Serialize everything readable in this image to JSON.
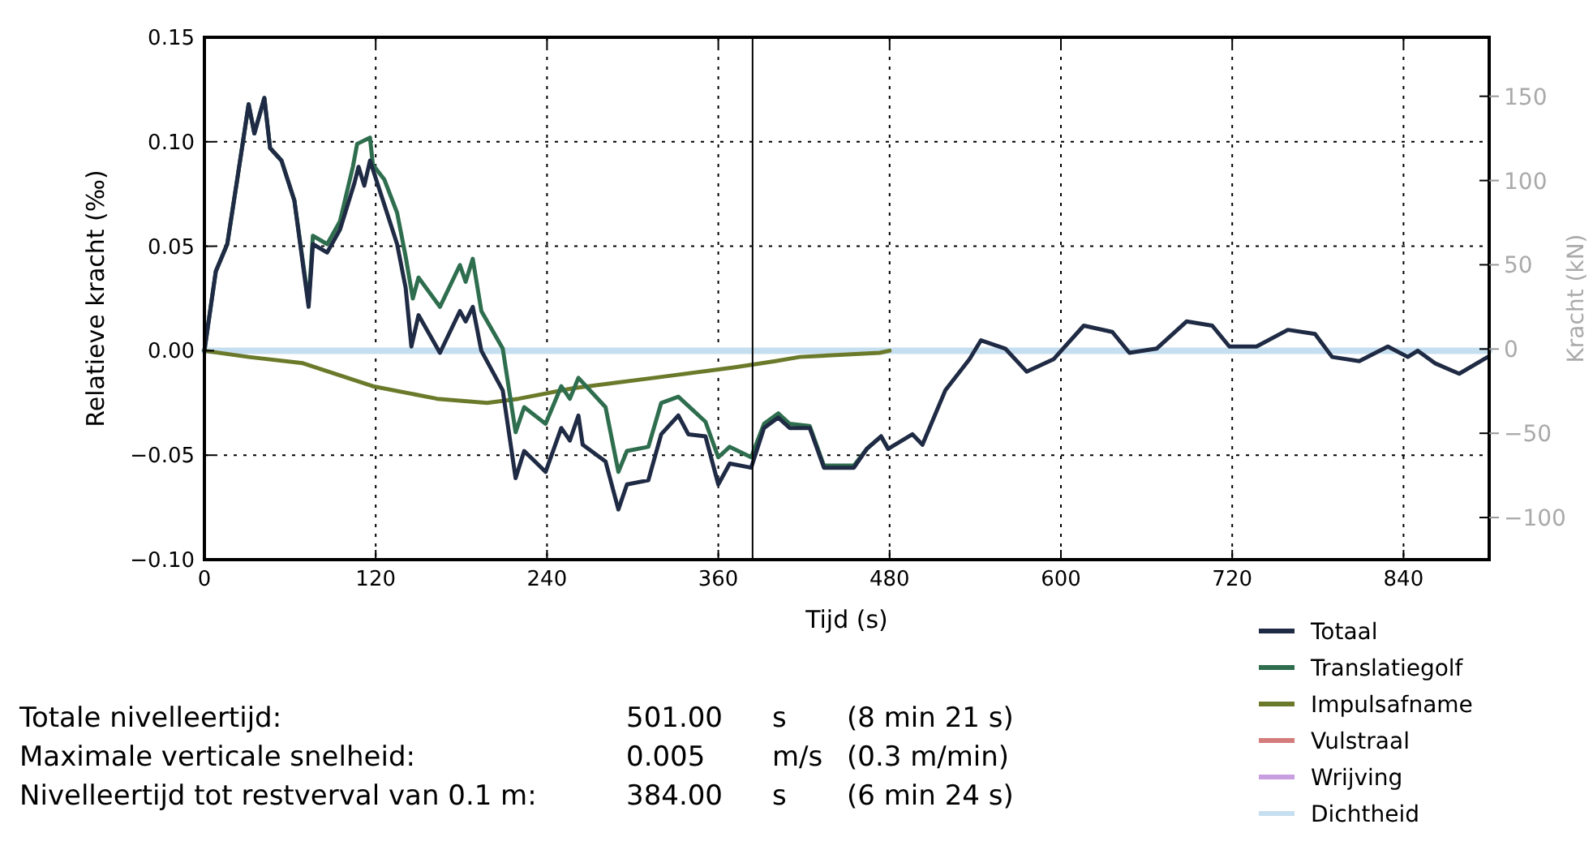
{
  "chart_data": {
    "type": "line",
    "xlabel": "Tijd (s)",
    "ylabel": "Relatieve kracht (‰)",
    "y2label": "Kracht (kN)",
    "xlim": [
      0,
      900
    ],
    "xticks": [
      0,
      120,
      240,
      360,
      480,
      600,
      720,
      840
    ],
    "ylim": [
      -0.1,
      0.15
    ],
    "yticks": [
      {
        "value": -0.1,
        "label": "−0.10"
      },
      {
        "value": -0.05,
        "label": "−0.05"
      },
      {
        "value": 0,
        "label": "0.00"
      },
      {
        "value": 0.05,
        "label": "0.05"
      },
      {
        "value": 0.1,
        "label": "0.10"
      },
      {
        "value": 0.15,
        "label": "0.15"
      }
    ],
    "y2lim": [
      -125,
      185
    ],
    "y2ticks": [
      -100,
      -50,
      0,
      50,
      100,
      150
    ],
    "grid": true,
    "legend": "bottom right",
    "line_style": "solid",
    "ref_lines": [
      {
        "axis": "x",
        "value": 384,
        "color": "#000000"
      }
    ],
    "series": [
      {
        "name": "Dichtheid",
        "color": "#c6dff0",
        "x": [
          0,
          900
        ],
        "values": [
          0,
          0
        ]
      },
      {
        "name": "Wrijving",
        "color": "#c99ee0"
      },
      {
        "name": "Vulstraal",
        "color": "#d47c7c"
      },
      {
        "name": "Impulsafname",
        "color": "#6b7a2a",
        "x": [
          0,
          31,
          69,
          118,
          163,
          198,
          220,
          258,
          315,
          371,
          400,
          417,
          473,
          480
        ],
        "values": [
          0,
          -0.003,
          -0.006,
          -0.017,
          -0.023,
          -0.025,
          -0.023,
          -0.018,
          -0.013,
          -0.008,
          -0.005,
          -0.003,
          -0.001,
          0
        ]
      },
      {
        "name": "Translatiegolf",
        "color": "#2e6e4e",
        "x": [
          0,
          8,
          16,
          23,
          31,
          35,
          42,
          46,
          54,
          63,
          73,
          76,
          86,
          95,
          104,
          107,
          116,
          118,
          126,
          135,
          141,
          146,
          150,
          165,
          179,
          183,
          188,
          194,
          209,
          218,
          224,
          239,
          250,
          256,
          262,
          281,
          290,
          296,
          311,
          320,
          332,
          351,
          360,
          368,
          383,
          392,
          402,
          410,
          424,
          434,
          455,
          464,
          474,
          479
        ],
        "values": [
          0,
          0.038,
          0.051,
          0.082,
          0.118,
          0.104,
          0.121,
          0.097,
          0.091,
          0.072,
          0.023,
          0.055,
          0.051,
          0.062,
          0.088,
          0.099,
          0.102,
          0.089,
          0.082,
          0.066,
          0.045,
          0.025,
          0.035,
          0.021,
          0.041,
          0.033,
          0.044,
          0.019,
          0.001,
          -0.039,
          -0.027,
          -0.035,
          -0.017,
          -0.023,
          -0.013,
          -0.027,
          -0.058,
          -0.048,
          -0.046,
          -0.025,
          -0.022,
          -0.034,
          -0.051,
          -0.046,
          -0.051,
          -0.035,
          -0.03,
          -0.035,
          -0.036,
          -0.055,
          -0.055,
          -0.047,
          -0.041,
          -0.047
        ]
      },
      {
        "name": "Totaal",
        "color": "#1f2a44",
        "x": [
          0,
          8,
          16,
          23,
          31,
          35,
          42,
          46,
          54,
          63,
          73,
          76,
          86,
          95,
          105,
          108,
          112,
          116,
          126,
          135,
          141,
          145,
          150,
          165,
          179,
          183,
          188,
          194,
          209,
          218,
          224,
          239,
          250,
          256,
          262,
          265,
          281,
          290,
          296,
          311,
          320,
          332,
          339,
          351,
          360,
          368,
          383,
          392,
          402,
          410,
          424,
          434,
          455,
          464,
          474,
          479,
          496,
          503,
          519,
          536,
          544,
          561,
          576,
          595,
          616,
          636,
          648,
          667,
          688,
          706,
          718,
          737,
          759,
          778,
          790,
          809,
          829,
          843,
          850,
          862,
          879,
          899
        ],
        "values": [
          0,
          0.038,
          0.051,
          0.082,
          0.118,
          0.104,
          0.121,
          0.097,
          0.091,
          0.072,
          0.021,
          0.051,
          0.047,
          0.058,
          0.08,
          0.088,
          0.079,
          0.091,
          0.07,
          0.051,
          0.03,
          0.002,
          0.017,
          -0.001,
          0.019,
          0.014,
          0.021,
          0,
          -0.019,
          -0.061,
          -0.048,
          -0.058,
          -0.037,
          -0.043,
          -0.031,
          -0.045,
          -0.053,
          -0.076,
          -0.064,
          -0.062,
          -0.04,
          -0.031,
          -0.04,
          -0.041,
          -0.064,
          -0.054,
          -0.056,
          -0.037,
          -0.032,
          -0.037,
          -0.037,
          -0.056,
          -0.056,
          -0.047,
          -0.041,
          -0.047,
          -0.04,
          -0.045,
          -0.019,
          -0.004,
          0.005,
          0.001,
          -0.01,
          -0.004,
          0.012,
          0.009,
          -0.001,
          0.001,
          0.014,
          0.012,
          0.002,
          0.002,
          0.01,
          0.008,
          -0.003,
          -0.005,
          0.002,
          -0.003,
          0,
          -0.006,
          -0.011,
          -0.003
        ]
      }
    ],
    "annotations": [
      "Totale nivelleertijd:",
      "501.00",
      "s",
      "(8 min 21 s)",
      "Maximale verticale snelheid:",
      "0.005",
      "m/s",
      "(0.3 m/min)",
      "Nivelleertijd tot restverval van 0.1 m:",
      "384.00",
      "s",
      "(6 min 24 s)"
    ]
  }
}
